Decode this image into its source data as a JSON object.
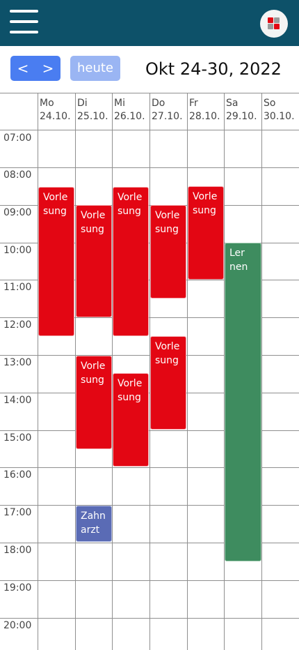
{
  "header": {
    "menu_icon": "hamburger-menu-icon",
    "app_icon": "app-grid-icon",
    "colors": {
      "bar": "#0d5169",
      "accent": "#e30613"
    }
  },
  "toolbar": {
    "prev_label": "<",
    "next_label": ">",
    "today_label": "heute",
    "range_title": "Okt 24-30, 2022",
    "colors": {
      "nav": "#4a7df1",
      "today": "#9ab5f3"
    }
  },
  "days": [
    {
      "name": "Mo",
      "date": "24.10."
    },
    {
      "name": "Di",
      "date": "25.10."
    },
    {
      "name": "Mi",
      "date": "26.10."
    },
    {
      "name": "Do",
      "date": "27.10."
    },
    {
      "name": "Fr",
      "date": "28.10."
    },
    {
      "name": "Sa",
      "date": "29.10."
    },
    {
      "name": "So",
      "date": "30.10."
    }
  ],
  "hours": [
    "07:00",
    "08:00",
    "09:00",
    "10:00",
    "11:00",
    "12:00",
    "13:00",
    "14:00",
    "15:00",
    "16:00",
    "17:00",
    "18:00",
    "19:00",
    "20:00"
  ],
  "events": [
    {
      "line1": "Vorle",
      "line2": "sung",
      "color": "#e30613"
    },
    {
      "line1": "Vorle",
      "line2": "sung",
      "color": "#e30613"
    },
    {
      "line1": "Vorle",
      "line2": "sung",
      "color": "#e30613"
    },
    {
      "line1": "Zahn",
      "line2": "arzt",
      "color": "#5a6bb5"
    },
    {
      "line1": "Vorle",
      "line2": "sung",
      "color": "#e30613"
    },
    {
      "line1": "Vorle",
      "line2": "sung",
      "color": "#e30613"
    },
    {
      "line1": "Vorle",
      "line2": "sung",
      "color": "#e30613"
    },
    {
      "line1": "Vorle",
      "line2": "sung",
      "color": "#e30613"
    },
    {
      "line1": "Vorle",
      "line2": "sung",
      "color": "#e30613"
    },
    {
      "line1": "Ler",
      "line2": "nen",
      "color": "#3e8c5f"
    }
  ]
}
